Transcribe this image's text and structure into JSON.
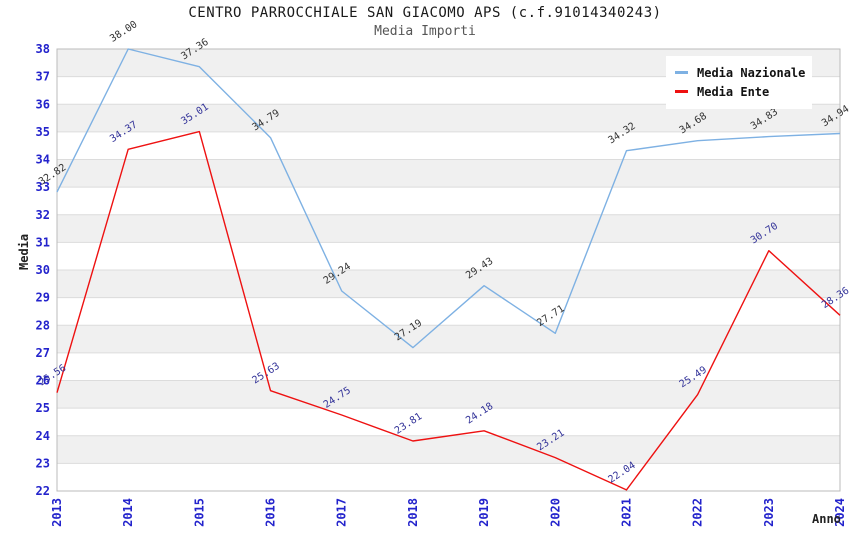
{
  "header": {
    "title": "CENTRO PARROCCHIALE SAN GIACOMO APS (c.f.91014340243)",
    "subtitle": "Media Importi"
  },
  "chart_data": {
    "type": "line",
    "title": "CENTRO PARROCCHIALE SAN GIACOMO APS (c.f.91014340243)",
    "subtitle": "Media Importi",
    "xlabel": "Anno",
    "ylabel": "Media",
    "categories": [
      "2013",
      "2014",
      "2015",
      "2016",
      "2017",
      "2018",
      "2019",
      "2020",
      "2021",
      "2022",
      "2023",
      "2024"
    ],
    "series": [
      {
        "name": "Media Nazionale",
        "color": "#7EB1E3",
        "label_color": "#333333",
        "values": [
          32.82,
          38.0,
          37.36,
          34.79,
          29.24,
          27.19,
          29.43,
          27.71,
          34.32,
          34.68,
          34.83,
          34.94
        ]
      },
      {
        "name": "Media Ente",
        "color": "#EE1111",
        "label_color": "#333399",
        "values": [
          25.56,
          34.37,
          35.01,
          25.63,
          24.75,
          23.81,
          24.18,
          23.21,
          22.04,
          25.49,
          30.7,
          28.36
        ]
      }
    ],
    "ylim": [
      22,
      38
    ],
    "ytick_step": 1,
    "grid": true,
    "legend_position": "top-right",
    "colors": {
      "tick_label": "#2323CC",
      "band_fill": "#F0F0F0",
      "grid_line": "#DCDCDC",
      "plot_border": "#BBBBBB"
    }
  }
}
